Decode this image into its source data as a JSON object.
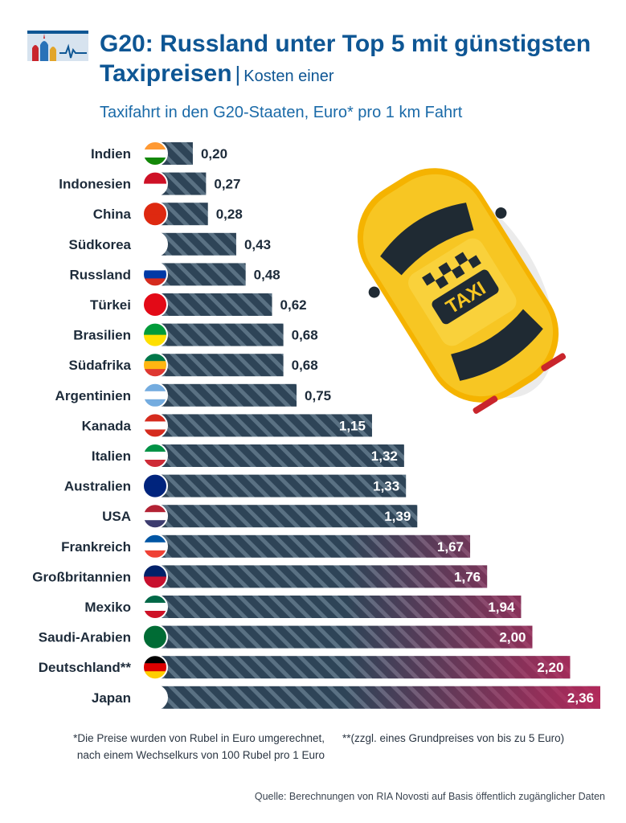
{
  "header": {
    "title": "G20: Russland unter Top 5 mit günstigsten Taxipreisen",
    "separator": "|",
    "description": "Kosten einer",
    "subtitle": "Taxifahrt in den G20-Staaten, Euro* pro 1 km Fahrt"
  },
  "taxi": {
    "sign": "TAXI"
  },
  "chart_data": {
    "type": "bar",
    "orientation": "horizontal",
    "title": "G20: Russland unter Top 5 mit günstigsten Taxipreisen",
    "subtitle": "Kosten einer Taxifahrt in den G20-Staaten, Euro* pro 1 km Fahrt",
    "categories": [
      "Indien",
      "Indonesien",
      "China",
      "Südkorea",
      "Russland",
      "Türkei",
      "Brasilien",
      "Südafrika",
      "Argentinien",
      "Kanada",
      "Italien",
      "Australien",
      "USA",
      "Frankreich",
      "Großbritannien",
      "Mexiko",
      "Saudi-Arabien",
      "Deutschland**",
      "Japan"
    ],
    "values": [
      0.2,
      0.27,
      0.28,
      0.43,
      0.48,
      0.62,
      0.68,
      0.68,
      0.75,
      1.15,
      1.32,
      1.33,
      1.39,
      1.67,
      1.76,
      1.94,
      2.0,
      2.2,
      2.36
    ],
    "value_labels": [
      "0,20",
      "0,27",
      "0,28",
      "0,43",
      "0,48",
      "0,62",
      "0,68",
      "0,68",
      "0,75",
      "1,15",
      "1,32",
      "1,33",
      "1,39",
      "1,67",
      "1,76",
      "1,94",
      "2,00",
      "2,20",
      "2,36"
    ],
    "xlim": [
      0,
      2.36
    ],
    "grid": false,
    "legend": "none",
    "colors": {
      "bar_dark": "#2e4457",
      "bar_accent": "#b8275a",
      "stripe": "#5a7183",
      "label_dark": "#1d2b3a",
      "label_light": "#ffffff"
    }
  },
  "footnotes": {
    "note1_line1": "*Die Preise wurden von Rubel in Euro umgerechnet,",
    "note1_line2": "nach einem Wechselkurs von 100 Rubel pro 1 Euro",
    "note2": "**(zzgl. eines Grundpreises von bis zu 5 Euro)"
  },
  "source": "Quelle: Berechnungen von RIA Novosti auf Basis öffentlich zugänglicher Daten"
}
